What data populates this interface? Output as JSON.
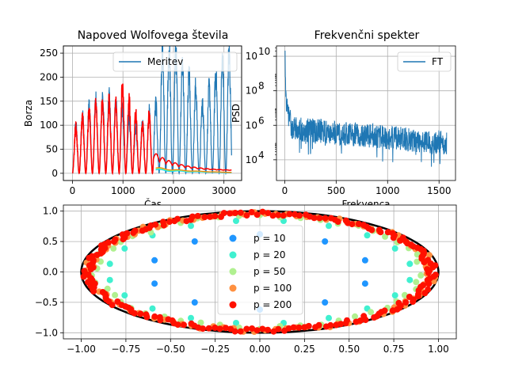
{
  "chart_data": [
    {
      "id": "wolf",
      "type": "line",
      "title": "Napoved Wolfovega števila",
      "xlabel": "Čas",
      "ylabel": "Borza",
      "xlim": [
        -180,
        3350
      ],
      "ylim": [
        -15,
        265
      ],
      "xticks": [
        0,
        1000,
        2000,
        3000
      ],
      "yticks": [
        0,
        50,
        100,
        150,
        200,
        250
      ],
      "grid": true,
      "legend_position": "upper-right",
      "series": [
        {
          "name": "Meritev",
          "color": "#1f77b4",
          "x_range": [
            0,
            3150
          ],
          "peak_max": 255
        },
        {
          "name": "",
          "color": "#00d4ff",
          "x_range": [
            1650,
            3150
          ]
        },
        {
          "name": "",
          "color": "#80ff80",
          "x_range": [
            1650,
            3150
          ]
        },
        {
          "name": "",
          "color": "#ff8000",
          "x_range": [
            1650,
            3150
          ]
        },
        {
          "name": "",
          "color": "#ff0000",
          "x_range": [
            0,
            3150
          ],
          "peak_max": 205
        }
      ]
    },
    {
      "id": "spectrum",
      "type": "line",
      "title": "Frekvenčni spekter",
      "xlabel": "Frekvenca",
      "ylabel": "PSD",
      "xscale": "linear",
      "yscale": "log",
      "xlim": [
        -80,
        1660
      ],
      "ylim_exponent": [
        2.8,
        10.6
      ],
      "xticks": [
        0,
        500,
        1000,
        1500
      ],
      "yticks_exponent": [
        4,
        6,
        8,
        10
      ],
      "grid": true,
      "legend_position": "upper-right",
      "series": [
        {
          "name": "FT",
          "color": "#1f77b4",
          "x_range": [
            0,
            1575
          ]
        }
      ]
    },
    {
      "id": "poles",
      "type": "scatter",
      "title": "",
      "xlim": [
        -1.1,
        1.1
      ],
      "ylim": [
        -1.1,
        1.1
      ],
      "xticks": [
        -1.0,
        -0.75,
        -0.5,
        -0.25,
        0.0,
        0.25,
        0.5,
        0.75,
        1.0
      ],
      "yticks": [
        -1.0,
        -0.5,
        0.0,
        0.5,
        1.0
      ],
      "grid": true,
      "legend_position": "center",
      "unit_circle": true,
      "series": [
        {
          "name": "p = 10",
          "color": "#1f96ff",
          "count": 10
        },
        {
          "name": "p = 20",
          "color": "#40f0d0",
          "count": 20
        },
        {
          "name": "p = 50",
          "color": "#b0f090",
          "count": 50
        },
        {
          "name": "p = 100",
          "color": "#ff9040",
          "count": 100
        },
        {
          "name": "p = 200",
          "color": "#ff1000",
          "count": 200
        }
      ]
    }
  ]
}
